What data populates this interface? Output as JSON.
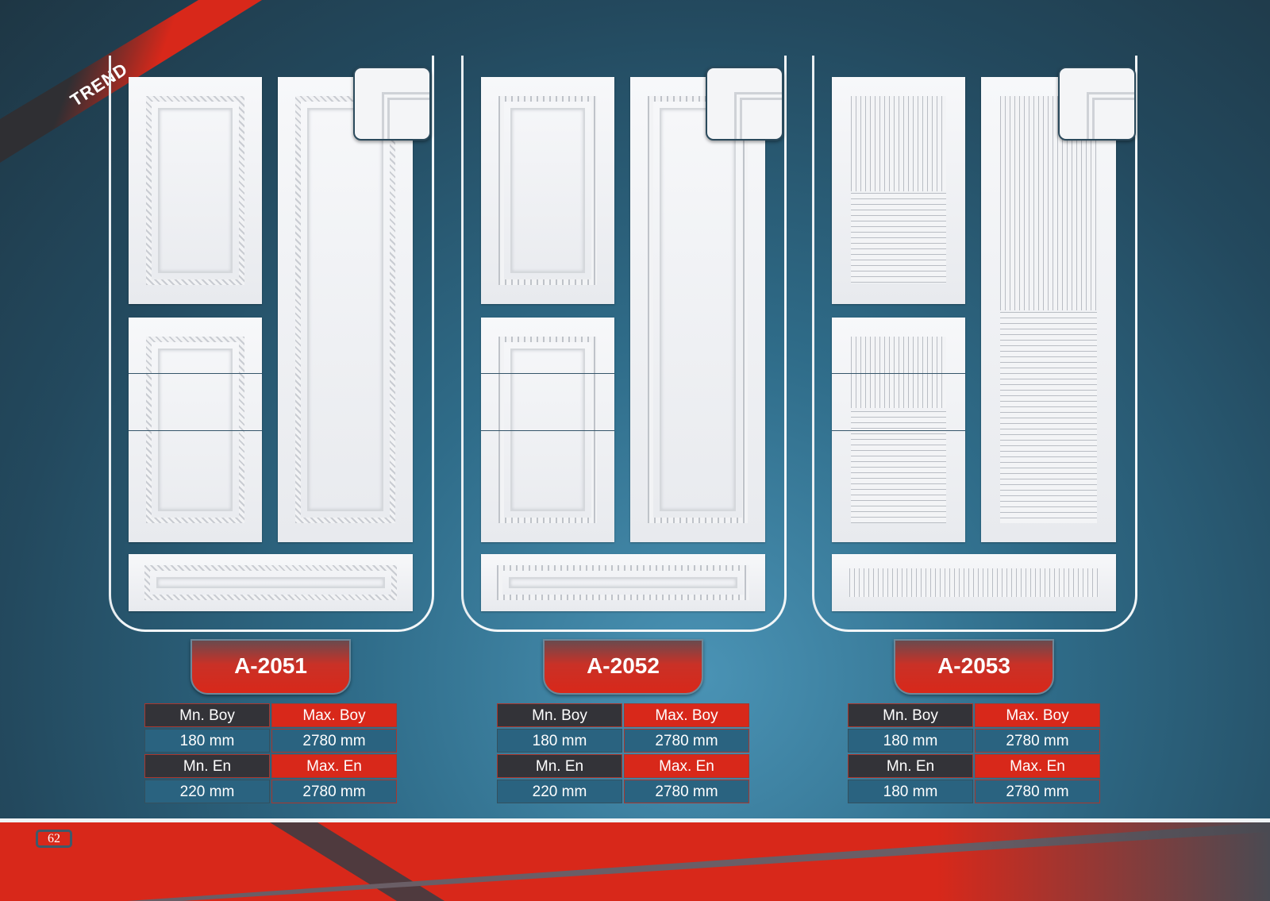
{
  "brand_ribbon": {
    "text": "TREND"
  },
  "products": [
    {
      "code": "A-2051",
      "pattern": "rope",
      "specs": {
        "min_height_label": "Mn. Boy",
        "max_height_label": "Max. Boy",
        "min_height": "180 mm",
        "max_height": "2780 mm",
        "min_width_label": "Mn. En",
        "max_width_label": "Max. En",
        "min_width": "220 mm",
        "max_width": "2780 mm"
      }
    },
    {
      "code": "A-2052",
      "pattern": "dots",
      "specs": {
        "min_height_label": "Mn. Boy",
        "max_height_label": "Max. Boy",
        "min_height": "180 mm",
        "max_height": "2780 mm",
        "min_width_label": "Mn. En",
        "max_width_label": "Max. En",
        "min_width": "220 mm",
        "max_width": "2780 mm"
      }
    },
    {
      "code": "A-2053",
      "pattern": "lines",
      "specs": {
        "min_height_label": "Mn. Boy",
        "max_height_label": "Max. Boy",
        "min_height": "180 mm",
        "max_height": "2780 mm",
        "min_width_label": "Mn. En",
        "max_width_label": "Max. En",
        "min_width": "180 mm",
        "max_width": "2780 mm"
      }
    }
  ],
  "footer": {
    "page_number": "62"
  },
  "colors": {
    "accent_red": "#d8281a",
    "dark": "#333338",
    "cell_blue": "#2a6380"
  }
}
